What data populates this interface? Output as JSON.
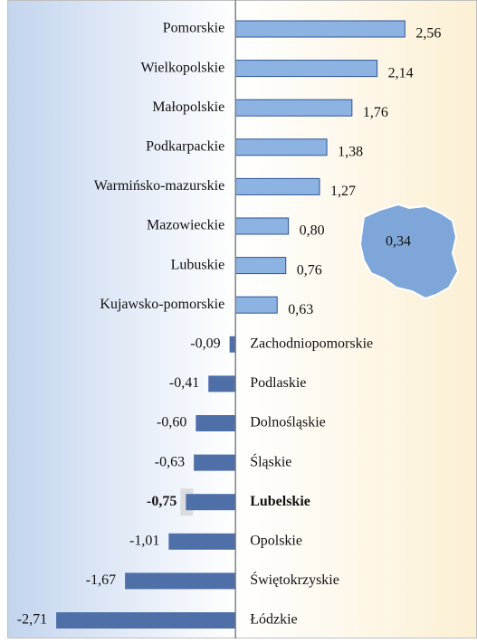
{
  "chart_data": {
    "type": "bar",
    "orientation": "horizontal",
    "categories": [
      "Pomorskie",
      "Wielkopolskie",
      "Małopolskie",
      "Podkarpackie",
      "Warmińsko-mazurskie",
      "Mazowieckie",
      "Lubuskie",
      "Kujawsko-pomorskie",
      "Zachodniopomorskie",
      "Podlaskie",
      "Dolnośląskie",
      "Śląskie",
      "Lubelskie",
      "Opolskie",
      "Świętokrzyskie",
      "Łódzkie"
    ],
    "values": [
      2.56,
      2.14,
      1.76,
      1.38,
      1.27,
      0.8,
      0.76,
      0.63,
      -0.09,
      -0.41,
      -0.6,
      -0.63,
      -0.75,
      -1.01,
      -1.67,
      -2.71
    ],
    "value_labels": [
      "2,56",
      "2,14",
      "1,76",
      "1,38",
      "1,27",
      "0,80",
      "0,76",
      "0,63",
      "-0,09",
      "-0,41",
      "-0,60",
      "-0,63",
      "-0,75",
      "-1,01",
      "-1,67",
      "-2,71"
    ],
    "positive_color": "#8db3e2",
    "negative_color": "#4f6fa9",
    "highlight": "Lubelskie",
    "annotation": "0,34",
    "xlim": [
      -3.45,
      3.65
    ]
  }
}
